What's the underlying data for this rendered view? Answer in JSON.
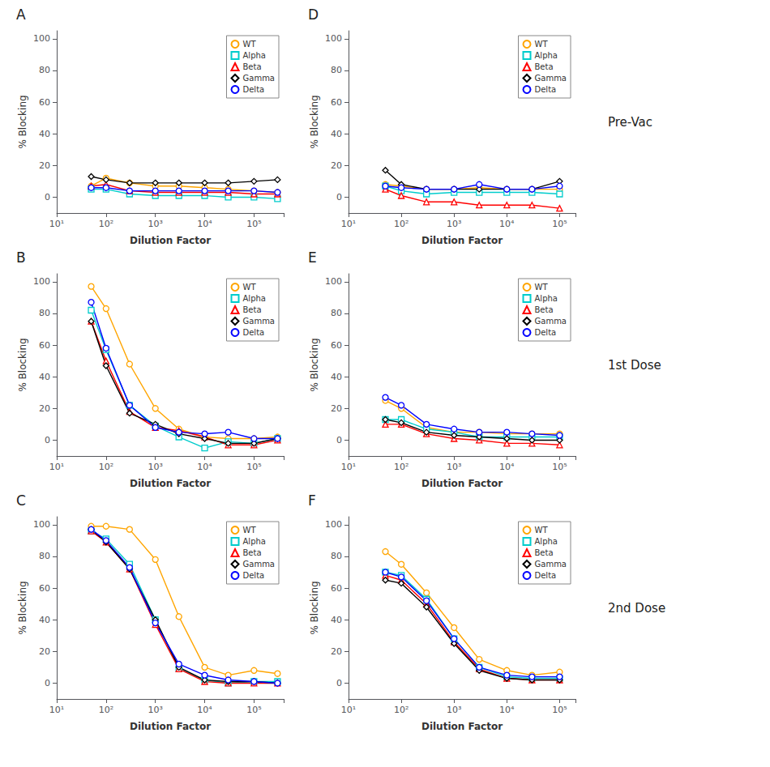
{
  "chart_data": [
    {
      "type": "line",
      "title": "A",
      "xlabel": "Dilution Factor",
      "ylabel": "% Blocking",
      "log": "x",
      "grid": false,
      "legend": "upper right",
      "xlim": [
        10,
        400000
      ],
      "xticks": [
        {
          "value": 10,
          "label": "10¹"
        },
        {
          "value": 100,
          "label": "10²"
        },
        {
          "value": 1000,
          "label": "10³"
        },
        {
          "value": 10000,
          "label": "10⁴"
        },
        {
          "value": 100000,
          "label": "10⁵"
        }
      ],
      "ylim": [
        -10,
        105
      ],
      "yticks": [
        0,
        20,
        40,
        60,
        80,
        100
      ],
      "x": [
        50,
        100,
        300,
        1000,
        3000,
        10000,
        30000,
        100000,
        300000
      ],
      "series": [
        {
          "name": "WT",
          "color": "#FFA500",
          "marker": "circle",
          "values": [
            7,
            12,
            9,
            7,
            7,
            6,
            5,
            4,
            3
          ]
        },
        {
          "name": "Alpha",
          "color": "#00CCCC",
          "marker": "square",
          "values": [
            5,
            5,
            2,
            1,
            1,
            1,
            0,
            0,
            -1
          ]
        },
        {
          "name": "Beta",
          "color": "#FF0000",
          "marker": "triangle",
          "values": [
            7,
            8,
            4,
            3,
            3,
            3,
            3,
            2,
            2
          ]
        },
        {
          "name": "Gamma",
          "color": "#000000",
          "marker": "diamond",
          "values": [
            13,
            11,
            9,
            9,
            9,
            9,
            9,
            10,
            11
          ]
        },
        {
          "name": "Delta",
          "color": "#0000FF",
          "marker": "circle",
          "values": [
            6,
            6,
            4,
            4,
            4,
            4,
            4,
            4,
            3
          ]
        }
      ]
    },
    {
      "type": "line",
      "title": "B",
      "xlabel": "Dilution Factor",
      "ylabel": "% Blocking",
      "log": "x",
      "grid": false,
      "legend": "upper right",
      "xlim": [
        10,
        400000
      ],
      "xticks": [
        {
          "value": 10,
          "label": "10¹"
        },
        {
          "value": 100,
          "label": "10²"
        },
        {
          "value": 1000,
          "label": "10³"
        },
        {
          "value": 10000,
          "label": "10⁴"
        },
        {
          "value": 100000,
          "label": "10⁵"
        }
      ],
      "ylim": [
        -10,
        105
      ],
      "yticks": [
        0,
        20,
        40,
        60,
        80,
        100
      ],
      "x": [
        50,
        100,
        300,
        1000,
        3000,
        10000,
        30000,
        100000,
        300000
      ],
      "series": [
        {
          "name": "WT",
          "color": "#FFA500",
          "marker": "circle",
          "values": [
            97,
            83,
            48,
            20,
            7,
            2,
            1,
            1,
            2
          ]
        },
        {
          "name": "Alpha",
          "color": "#00CCCC",
          "marker": "square",
          "values": [
            82,
            57,
            22,
            9,
            2,
            -5,
            -1,
            -2,
            1
          ]
        },
        {
          "name": "Beta",
          "color": "#FF0000",
          "marker": "triangle",
          "values": [
            75,
            50,
            18,
            8,
            6,
            2,
            -3,
            -3,
            0
          ]
        },
        {
          "name": "Gamma",
          "color": "#000000",
          "marker": "diamond",
          "values": [
            75,
            47,
            17,
            10,
            4,
            1,
            -2,
            -2,
            1
          ]
        },
        {
          "name": "Delta",
          "color": "#0000FF",
          "marker": "circle",
          "values": [
            87,
            58,
            22,
            8,
            5,
            4,
            5,
            1,
            1
          ]
        }
      ]
    },
    {
      "type": "line",
      "title": "C",
      "xlabel": "Dilution Factor",
      "ylabel": "% Blocking",
      "log": "x",
      "grid": false,
      "legend": "upper right",
      "xlim": [
        10,
        400000
      ],
      "xticks": [
        {
          "value": 10,
          "label": "10¹"
        },
        {
          "value": 100,
          "label": "10²"
        },
        {
          "value": 1000,
          "label": "10³"
        },
        {
          "value": 10000,
          "label": "10⁴"
        },
        {
          "value": 100000,
          "label": "10⁵"
        }
      ],
      "ylim": [
        -10,
        105
      ],
      "yticks": [
        0,
        20,
        40,
        60,
        80,
        100
      ],
      "x": [
        50,
        100,
        300,
        1000,
        3000,
        10000,
        30000,
        100000,
        300000
      ],
      "series": [
        {
          "name": "WT",
          "color": "#FFA500",
          "marker": "circle",
          "values": [
            99,
            99,
            97,
            78,
            42,
            10,
            5,
            8,
            6
          ]
        },
        {
          "name": "Alpha",
          "color": "#00CCCC",
          "marker": "square",
          "values": [
            96,
            91,
            75,
            40,
            9,
            2,
            0,
            1,
            1
          ]
        },
        {
          "name": "Beta",
          "color": "#FF0000",
          "marker": "triangle",
          "values": [
            96,
            89,
            72,
            37,
            9,
            1,
            0,
            0,
            0
          ]
        },
        {
          "name": "Gamma",
          "color": "#000000",
          "marker": "diamond",
          "values": [
            97,
            89,
            72,
            40,
            10,
            2,
            1,
            1,
            0
          ]
        },
        {
          "name": "Delta",
          "color": "#0000FF",
          "marker": "circle",
          "values": [
            97,
            90,
            73,
            38,
            12,
            5,
            2,
            1,
            0
          ]
        }
      ]
    },
    {
      "type": "line",
      "title": "D",
      "xlabel": "Dilution Factor",
      "ylabel": "% Blocking",
      "log": "x",
      "grid": false,
      "legend": "upper right",
      "annotations": [
        "Pre-Vac"
      ],
      "xlim": [
        10,
        200000
      ],
      "xticks": [
        {
          "value": 10,
          "label": "10¹"
        },
        {
          "value": 100,
          "label": "10²"
        },
        {
          "value": 1000,
          "label": "10³"
        },
        {
          "value": 10000,
          "label": "10⁴"
        },
        {
          "value": 100000,
          "label": "10⁵"
        }
      ],
      "ylim": [
        -10,
        105
      ],
      "yticks": [
        0,
        20,
        40,
        60,
        80,
        100
      ],
      "x": [
        50,
        100,
        300,
        1000,
        3000,
        10000,
        30000,
        100000
      ],
      "series": [
        {
          "name": "WT",
          "color": "#FFA500",
          "marker": "circle",
          "values": [
            8,
            7,
            5,
            5,
            6,
            5,
            5,
            5
          ]
        },
        {
          "name": "Alpha",
          "color": "#00CCCC",
          "marker": "square",
          "values": [
            7,
            4,
            2,
            3,
            3,
            3,
            3,
            2
          ]
        },
        {
          "name": "Beta",
          "color": "#FF0000",
          "marker": "triangle",
          "values": [
            5,
            1,
            -3,
            -3,
            -5,
            -5,
            -5,
            -7
          ]
        },
        {
          "name": "Gamma",
          "color": "#000000",
          "marker": "diamond",
          "values": [
            17,
            8,
            5,
            5,
            5,
            5,
            5,
            10
          ]
        },
        {
          "name": "Delta",
          "color": "#0000FF",
          "marker": "circle",
          "values": [
            7,
            6,
            5,
            5,
            8,
            5,
            5,
            7
          ]
        }
      ]
    },
    {
      "type": "line",
      "title": "E",
      "xlabel": "Dilution Factor",
      "ylabel": "% Blocking",
      "log": "x",
      "grid": false,
      "legend": "upper right",
      "annotations": [
        "1st Dose"
      ],
      "xlim": [
        10,
        200000
      ],
      "xticks": [
        {
          "value": 10,
          "label": "10¹"
        },
        {
          "value": 100,
          "label": "10²"
        },
        {
          "value": 1000,
          "label": "10³"
        },
        {
          "value": 10000,
          "label": "10⁴"
        },
        {
          "value": 100000,
          "label": "10⁵"
        }
      ],
      "ylim": [
        -10,
        105
      ],
      "yticks": [
        0,
        20,
        40,
        60,
        80,
        100
      ],
      "x": [
        50,
        100,
        300,
        1000,
        3000,
        10000,
        30000,
        100000
      ],
      "series": [
        {
          "name": "WT",
          "color": "#FFA500",
          "marker": "circle",
          "values": [
            25,
            20,
            8,
            5,
            5,
            4,
            4,
            4
          ]
        },
        {
          "name": "Alpha",
          "color": "#00CCCC",
          "marker": "square",
          "values": [
            13,
            13,
            7,
            5,
            2,
            2,
            2,
            2
          ]
        },
        {
          "name": "Beta",
          "color": "#FF0000",
          "marker": "triangle",
          "values": [
            10,
            10,
            4,
            1,
            0,
            -2,
            -2,
            -3
          ]
        },
        {
          "name": "Gamma",
          "color": "#000000",
          "marker": "diamond",
          "values": [
            13,
            11,
            5,
            3,
            2,
            1,
            0,
            0
          ]
        },
        {
          "name": "Delta",
          "color": "#0000FF",
          "marker": "circle",
          "values": [
            27,
            22,
            10,
            7,
            5,
            5,
            4,
            3
          ]
        }
      ]
    },
    {
      "type": "line",
      "title": "F",
      "xlabel": "Dilution Factor",
      "ylabel": "% Blocking",
      "log": "x",
      "grid": false,
      "legend": "upper right",
      "annotations": [
        "2nd Dose"
      ],
      "xlim": [
        10,
        200000
      ],
      "xticks": [
        {
          "value": 10,
          "label": "10¹"
        },
        {
          "value": 100,
          "label": "10²"
        },
        {
          "value": 1000,
          "label": "10³"
        },
        {
          "value": 10000,
          "label": "10⁴"
        },
        {
          "value": 100000,
          "label": "10⁵"
        }
      ],
      "ylim": [
        -10,
        105
      ],
      "yticks": [
        0,
        20,
        40,
        60,
        80,
        100
      ],
      "x": [
        50,
        100,
        300,
        1000,
        3000,
        10000,
        30000,
        100000
      ],
      "series": [
        {
          "name": "WT",
          "color": "#FFA500",
          "marker": "circle",
          "values": [
            83,
            75,
            57,
            35,
            15,
            8,
            5,
            7
          ]
        },
        {
          "name": "Alpha",
          "color": "#00CCCC",
          "marker": "square",
          "values": [
            70,
            68,
            53,
            28,
            10,
            4,
            3,
            3
          ]
        },
        {
          "name": "Beta",
          "color": "#FF0000",
          "marker": "triangle",
          "values": [
            68,
            65,
            50,
            26,
            9,
            3,
            2,
            2
          ]
        },
        {
          "name": "Gamma",
          "color": "#000000",
          "marker": "diamond",
          "values": [
            65,
            63,
            48,
            25,
            8,
            3,
            2,
            2
          ]
        },
        {
          "name": "Delta",
          "color": "#0000FF",
          "marker": "circle",
          "values": [
            70,
            67,
            52,
            28,
            10,
            5,
            4,
            4
          ]
        }
      ]
    }
  ]
}
